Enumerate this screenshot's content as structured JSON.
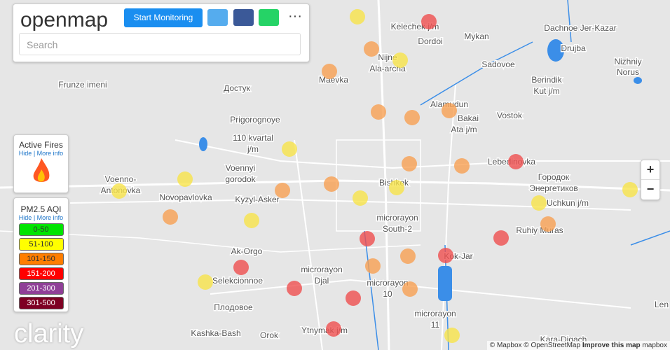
{
  "header": {
    "logo": "openmap",
    "button": "Start Monitoring",
    "search_placeholder": "Search"
  },
  "active_fires": {
    "title": "Active Fires",
    "hide": "Hide",
    "more_info": "More info"
  },
  "aqi_legend": {
    "title": "PM2.5 AQI",
    "hide": "Hide",
    "more_info": "More info",
    "levels": [
      {
        "range": "0-50",
        "color": "#00e400"
      },
      {
        "range": "51-100",
        "color": "#ffff00"
      },
      {
        "range": "101-150",
        "color": "#ff7e00"
      },
      {
        "range": "151-200",
        "color": "#ff0000"
      },
      {
        "range": "201-300",
        "color": "#8f3f97"
      },
      {
        "range": "301-500",
        "color": "#7e0023"
      }
    ]
  },
  "zoom": {
    "in": "+",
    "out": "−"
  },
  "map": {
    "labels": [
      "Kelechek j/m",
      "Dordoi",
      "Mykan",
      "Dachnoe Jer-Kazar",
      "Drujba",
      "Nijne",
      "Ala-archa",
      "Maevka",
      "Sadovoe",
      "Nizhniy",
      "Norus",
      "Frunze imeni",
      "Достук",
      "Berindik",
      "Kut j/m",
      "Alamudun",
      "Prigorognoye",
      "Bakai",
      "Ata j/m",
      "Vostok",
      "110 kvartal",
      "j/m",
      "Lebedinovka",
      "Voenno-",
      "Antonovka",
      "Voennyi",
      "gorodok",
      "Bishkek",
      "Городок",
      "Энергетиков",
      "Novopavlovka",
      "Kyzyl-Asker",
      "Uchkun j/m",
      "microrayon",
      "South-2",
      "Ruhiy Muras",
      "Ak-Orgo",
      "Kok-Jar",
      "microrayon",
      "Djal",
      "Selekcionnoe",
      "microrayon",
      "10",
      "Плодовое",
      "microrayon",
      "11",
      "Kashka-Bash",
      "Ytnymak j/m",
      "Orok",
      "Kara-Digach",
      "Len"
    ]
  },
  "footer": {
    "brand": "clarity",
    "attribution": "© Mapbox © OpenStreetMap",
    "improve": "Improve this map",
    "mapbox": "mapbox"
  }
}
